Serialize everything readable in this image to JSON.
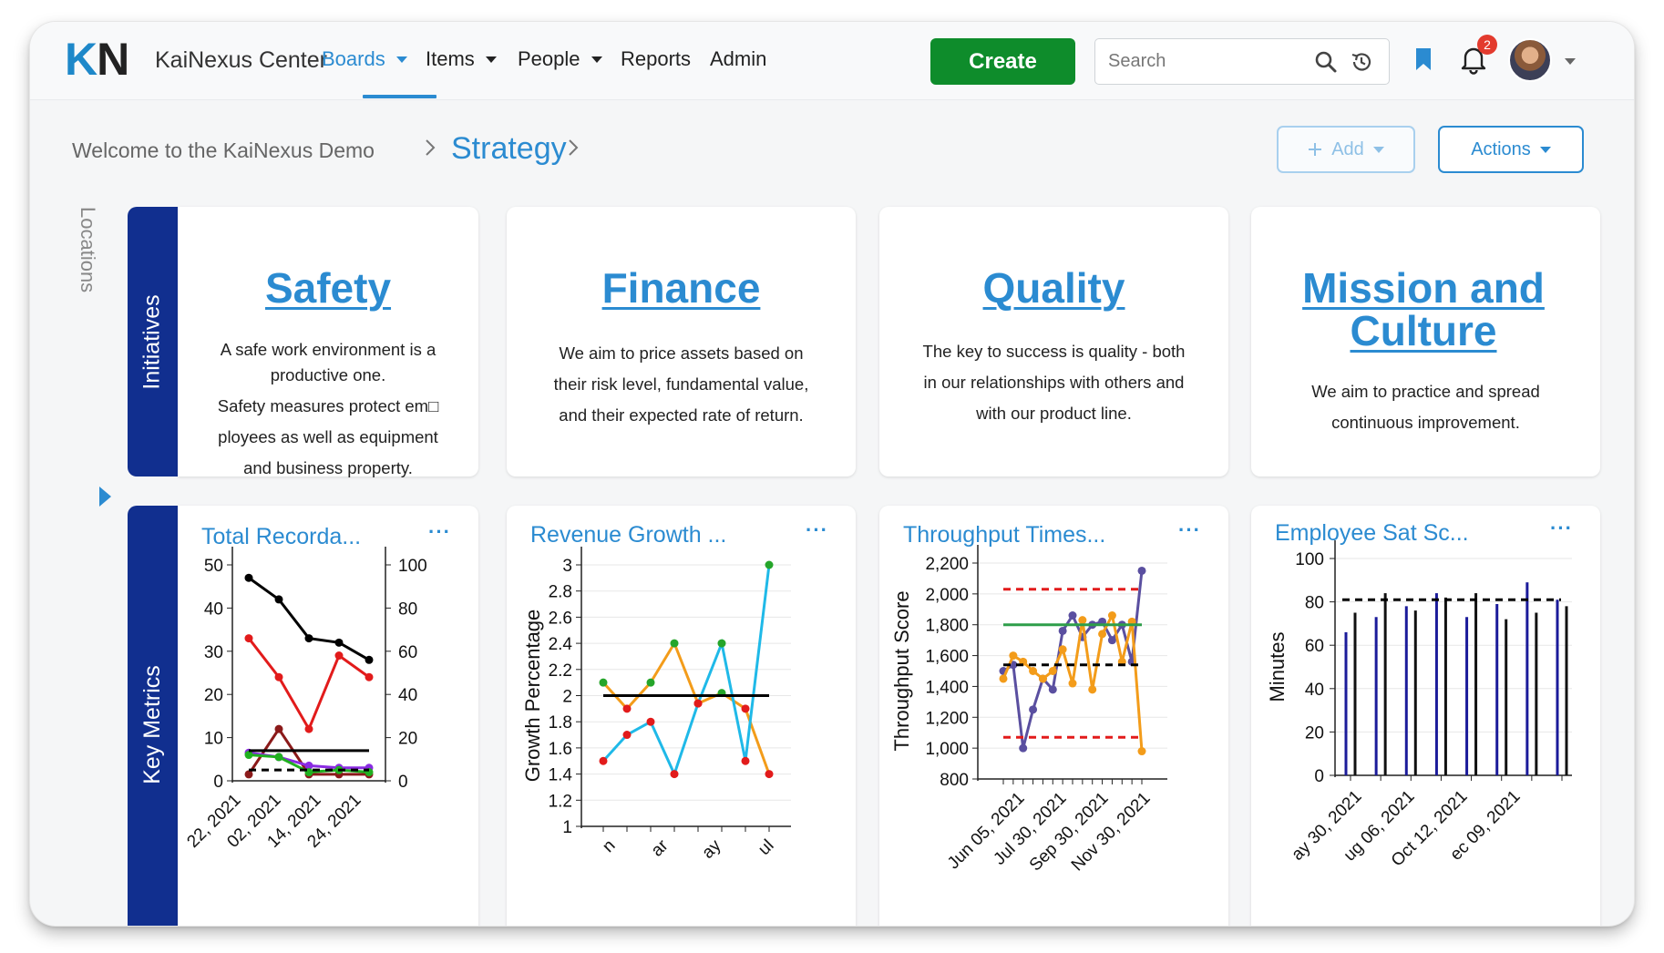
{
  "app": {
    "logo_k": "K",
    "logo_n": "N",
    "title": "KaiNexus Center"
  },
  "nav": {
    "items": [
      {
        "label": "Boards",
        "dropdown": true,
        "active": true
      },
      {
        "label": "Items",
        "dropdown": true,
        "active": false
      },
      {
        "label": "People",
        "dropdown": true,
        "active": false
      },
      {
        "label": "Reports",
        "dropdown": false,
        "active": false
      },
      {
        "label": "Admin",
        "dropdown": false,
        "active": false
      }
    ],
    "create_label": "Create",
    "search_placeholder": "Search",
    "notification_count": "2"
  },
  "breadcrumb": {
    "parent": "Welcome to the KaiNexus Demo",
    "current": "Strategy",
    "add_label": "Add",
    "actions_label": "Actions"
  },
  "side": {
    "locations_label": "Locations"
  },
  "rows": {
    "initiatives_label": "Initiatives",
    "metrics_label": "Key Metrics"
  },
  "initiatives": [
    {
      "title": "Safety",
      "description": [
        "A safe work environment is a",
        "productive one.",
        "Safety measures protect em□",
        "ployees as well as equipment",
        "and business property."
      ]
    },
    {
      "title": "Finance",
      "description": [
        "We aim to price assets based on",
        "their risk level, fundamental value,",
        "and their expected rate of return."
      ]
    },
    {
      "title": "Quality",
      "description": [
        "The key to success is quality - both",
        "in our relationships with others and",
        "with our product line."
      ]
    },
    {
      "title": "Mission and Culture",
      "description": [
        "We aim to practice and spread",
        "continuous improvement."
      ]
    }
  ],
  "metrics": [
    {
      "title": "Total Recorda...",
      "menu": "···"
    },
    {
      "title": "Revenue Growth ...",
      "menu": "···"
    },
    {
      "title": "Throughput Times...",
      "menu": "···"
    },
    {
      "title": "Employee Sat Sc...",
      "menu": "···"
    }
  ],
  "colors": {
    "accent": "#2b8bd1",
    "create": "#0e8c2b",
    "band": "#112f8f",
    "badge": "#e33b2e"
  },
  "icons": [
    "search-icon",
    "history-icon",
    "bookmark-icon",
    "bell-icon",
    "chevron-right-icon",
    "plus-icon",
    "caret-down-icon"
  ],
  "chart_data": [
    {
      "type": "line",
      "ylim": [
        0,
        50
      ],
      "y2lim": [
        0,
        100
      ],
      "yticks": [
        0,
        10,
        20,
        30,
        40,
        50
      ],
      "y2ticks": [
        0,
        20,
        40,
        60,
        80,
        100
      ],
      "x_tick_labels": [
        "22, 2021",
        "02, 2021",
        "14, 2021",
        "24, 2021"
      ],
      "series": [
        {
          "color": "#000000",
          "axis": "right",
          "values": [
            94,
            84,
            66,
            64,
            56
          ]
        },
        {
          "color": "#e21b1b",
          "axis": "left",
          "values": [
            33,
            24,
            12,
            29,
            24
          ]
        },
        {
          "color": "#8b1a1a",
          "axis": "left",
          "values": [
            1.5,
            12,
            1.5,
            1.5,
            1.5
          ]
        },
        {
          "color": "#8a2be2",
          "axis": "left",
          "values": [
            6.5,
            5.5,
            3.5,
            3,
            3
          ]
        },
        {
          "color": "#20b020",
          "axis": "left",
          "values": [
            6,
            5.5,
            2,
            2.5,
            2
          ]
        },
        {
          "color": "#000000",
          "axis": "left",
          "style": "solid-target",
          "values": [
            7,
            7,
            7,
            7,
            7
          ]
        },
        {
          "color": "#000000",
          "axis": "left",
          "style": "dashed",
          "values": [
            2.5,
            2.5,
            2.5,
            2.5,
            2.5
          ]
        }
      ]
    },
    {
      "type": "line",
      "ylabel": "Growth Percentage",
      "ylim": [
        1,
        3
      ],
      "yticks": [
        1,
        1.2,
        1.4,
        1.6,
        1.8,
        2,
        2.2,
        2.4,
        2.6,
        2.8,
        3
      ],
      "x_tick_labels": [
        "n",
        "ar",
        "ay",
        "ul"
      ],
      "series": [
        {
          "color": "#f39c1a",
          "values": [
            2.1,
            1.9,
            2.1,
            2.4,
            1.94,
            2.02,
            1.9,
            1.4
          ]
        },
        {
          "color": "#1fb9e8",
          "values": [
            1.5,
            1.7,
            1.8,
            1.4,
            1.94,
            2.4,
            1.5,
            3.0
          ]
        },
        {
          "color": "#000000",
          "style": "target",
          "values": [
            2,
            2,
            2,
            2,
            2,
            2,
            2,
            2
          ]
        }
      ]
    },
    {
      "type": "line",
      "ylabel": "Throughput Score",
      "ylim": [
        800,
        2200
      ],
      "yticks": [
        800,
        1000,
        1200,
        1400,
        1600,
        1800,
        2000,
        2200
      ],
      "yticklabels": [
        "800",
        "1,000",
        "1,200",
        "1,400",
        "1,600",
        "1,800",
        "2,000",
        "2,200"
      ],
      "x_tick_labels": [
        "Jun 05, 2021",
        "Jul 30, 2021",
        "Sep 30, 2021",
        "Nov 30, 2021"
      ],
      "series": [
        {
          "color": "#5a4fa0",
          "values": [
            1500,
            1540,
            1000,
            1250,
            1450,
            1380,
            1760,
            1860,
            1720,
            1800,
            1820,
            1700,
            1800,
            1560,
            2150
          ]
        },
        {
          "color": "#f39c1a",
          "values": [
            1450,
            1600,
            1560,
            1500,
            1450,
            1500,
            1640,
            1420,
            1830,
            1380,
            1740,
            1860,
            1560,
            1820,
            980
          ]
        },
        {
          "color": "#e21b1b",
          "style": "dashed",
          "values": [
            2030,
            2030,
            2030,
            2030,
            2030,
            2030,
            2030,
            2030,
            2030,
            2030,
            2030,
            2030,
            2030,
            2030,
            2030
          ]
        },
        {
          "color": "#e21b1b",
          "style": "dashed",
          "values": [
            1070,
            1070,
            1070,
            1070,
            1070,
            1070,
            1070,
            1070,
            1070,
            1070,
            1070,
            1070,
            1070,
            1070,
            1070
          ]
        },
        {
          "color": "#2e9e4a",
          "style": "target",
          "values": [
            1800,
            1800,
            1800,
            1800,
            1800,
            1800,
            1800,
            1800,
            1800,
            1800,
            1800,
            1800,
            1800,
            1800,
            1800
          ]
        },
        {
          "color": "#000000",
          "style": "dashed",
          "values": [
            1540,
            1540,
            1540,
            1540,
            1540,
            1540,
            1540,
            1540,
            1540,
            1540,
            1540,
            1540,
            1540,
            1540,
            1540
          ]
        }
      ]
    },
    {
      "type": "bar",
      "ylabel": "Minutes",
      "ylim": [
        0,
        100
      ],
      "yticks": [
        0,
        20,
        40,
        60,
        80,
        100
      ],
      "x_tick_labels": [
        "ay 30, 2021",
        "ug 06, 2021",
        "Oct 12, 2021",
        "ec 09, 2021"
      ],
      "series": [
        {
          "color": "#1b1b9a",
          "values": [
            66,
            73,
            78,
            84,
            73,
            79,
            89,
            81
          ]
        },
        {
          "color": "#111111",
          "values": [
            75,
            84,
            76,
            82,
            84,
            72,
            75,
            78
          ]
        }
      ],
      "target": 81
    }
  ]
}
